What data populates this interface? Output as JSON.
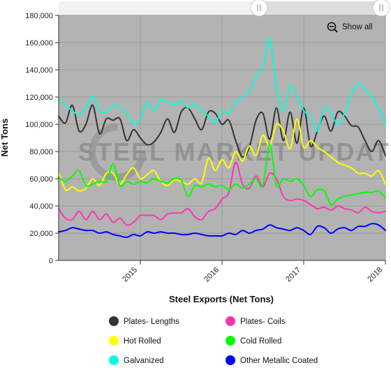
{
  "toolbar": {
    "show_all_label": "Show all"
  },
  "watermark": {
    "brand": "STEEL MARKET UPDATE"
  },
  "colors": {
    "plot_bg": "#b3b3b3",
    "navigator_bg": "#e8e8e8",
    "grid": "#999999"
  },
  "icons": {
    "show_all": "zoom-out-icon",
    "slider_handle": "drag-handle-icon"
  },
  "chart_data": {
    "type": "line",
    "title": "",
    "xlabel": "Steel Exports (Net Tons)",
    "ylabel": "Net Tons",
    "ylim": [
      0,
      180000
    ],
    "yticks": [
      0,
      20000,
      40000,
      60000,
      80000,
      100000,
      120000,
      140000,
      160000,
      180000
    ],
    "ytick_labels": [
      "0",
      "20,000",
      "40,000",
      "60,000",
      "80,000",
      "100,000",
      "120,000",
      "140,000",
      "160,000",
      "180,000"
    ],
    "xlim": [
      "2014-01",
      "2018-01"
    ],
    "xticks": [
      "2015",
      "2016",
      "2017",
      "2018"
    ],
    "grid": true,
    "legend_position": "bottom",
    "x": [
      "2014-01",
      "2014-02",
      "2014-03",
      "2014-04",
      "2014-05",
      "2014-06",
      "2014-07",
      "2014-08",
      "2014-09",
      "2014-10",
      "2014-11",
      "2014-12",
      "2015-01",
      "2015-02",
      "2015-03",
      "2015-04",
      "2015-05",
      "2015-06",
      "2015-07",
      "2015-08",
      "2015-09",
      "2015-10",
      "2015-11",
      "2015-12",
      "2016-01",
      "2016-02",
      "2016-03",
      "2016-04",
      "2016-05",
      "2016-06",
      "2016-07",
      "2016-08",
      "2016-09",
      "2016-10",
      "2016-11",
      "2016-12",
      "2017-01",
      "2017-02",
      "2017-03",
      "2017-04",
      "2017-05",
      "2017-06",
      "2017-07",
      "2017-08",
      "2017-09",
      "2017-10",
      "2017-11",
      "2017-12",
      "2018-01"
    ],
    "series": [
      {
        "name": "Plates- Lengths",
        "color": "#333333",
        "values": [
          106000,
          101000,
          114000,
          95000,
          100000,
          114000,
          93000,
          104000,
          103000,
          104000,
          88000,
          96000,
          90000,
          85000,
          87000,
          94000,
          104000,
          94000,
          109000,
          112000,
          104000,
          96000,
          109000,
          108000,
          100000,
          103000,
          88000,
          76000,
          83000,
          103000,
          108000,
          89000,
          112000,
          88000,
          109000,
          86000,
          112000,
          84000,
          95000,
          106000,
          95000,
          109000,
          106000,
          99000,
          98000,
          88000,
          80000,
          88000,
          77000
        ]
      },
      {
        "name": "Plates- Coils",
        "color": "#ff33b4",
        "values": [
          38000,
          31000,
          30000,
          36000,
          30000,
          36000,
          30000,
          34000,
          28000,
          31000,
          26000,
          28000,
          33000,
          33000,
          33000,
          30000,
          34000,
          35000,
          35000,
          38000,
          32000,
          30000,
          36000,
          38000,
          45000,
          50000,
          72000,
          56000,
          53000,
          62000,
          54000,
          64000,
          60000,
          47000,
          44000,
          45000,
          44000,
          41000,
          38000,
          39000,
          37000,
          40000,
          38000,
          37000,
          35000,
          39000,
          36000,
          35000,
          36000
        ]
      },
      {
        "name": "Hot Rolled",
        "color": "#ffff00",
        "values": [
          65000,
          52000,
          54000,
          51000,
          53000,
          60000,
          55000,
          64000,
          64000,
          56000,
          63000,
          68000,
          60000,
          63000,
          66000,
          58000,
          55000,
          59000,
          58000,
          56000,
          60000,
          57000,
          75000,
          66000,
          74000,
          68000,
          80000,
          73000,
          84000,
          77000,
          92000,
          84000,
          100000,
          95000,
          82000,
          104000,
          83000,
          88000,
          83000,
          80000,
          76000,
          72000,
          70000,
          68000,
          64000,
          64000,
          62000,
          66000,
          56000
        ]
      },
      {
        "name": "Cold Rolled",
        "color": "#00ff00",
        "values": [
          61000,
          58000,
          62000,
          66000,
          55000,
          56000,
          58000,
          58000,
          71000,
          55000,
          58000,
          56000,
          58000,
          57000,
          60000,
          58000,
          57000,
          60000,
          59000,
          47000,
          55000,
          54000,
          56000,
          54000,
          55000,
          52000,
          56000,
          53000,
          56000,
          60000,
          55000,
          85000,
          55000,
          60000,
          58000,
          60000,
          55000,
          47000,
          52000,
          51000,
          41000,
          45000,
          47000,
          48000,
          49000,
          50000,
          50000,
          51000,
          46000
        ]
      },
      {
        "name": "Galvanized",
        "color": "#00ffe0",
        "values": [
          118000,
          114000,
          110000,
          107000,
          112000,
          120000,
          110000,
          109000,
          114000,
          112000,
          108000,
          100000,
          104000,
          116000,
          110000,
          118000,
          116000,
          114000,
          117000,
          112000,
          115000,
          110000,
          106000,
          101000,
          110000,
          108000,
          116000,
          120000,
          124000,
          135000,
          142000,
          163000,
          126000,
          110000,
          128000,
          120000,
          110000,
          105000,
          95000,
          112000,
          108000,
          100000,
          108000,
          122000,
          130000,
          125000,
          120000,
          112000,
          100000
        ]
      },
      {
        "name": "Other Metallic Coated",
        "color": "#0000ff",
        "values": [
          21000,
          22000,
          24000,
          23000,
          22000,
          22000,
          20000,
          21000,
          19000,
          18000,
          17000,
          19000,
          18000,
          21000,
          20000,
          21000,
          20000,
          20000,
          19000,
          19000,
          20000,
          19000,
          18000,
          18000,
          18000,
          20000,
          19000,
          22000,
          20000,
          22000,
          23000,
          26000,
          24000,
          23000,
          22000,
          24000,
          22000,
          19000,
          25000,
          24000,
          20000,
          23000,
          24000,
          22000,
          25000,
          25000,
          27000,
          26000,
          22000
        ]
      }
    ]
  }
}
